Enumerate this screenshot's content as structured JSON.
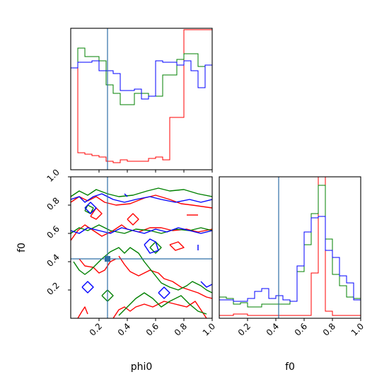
{
  "chart_data": {
    "type": "corner",
    "parameters": [
      "phi0",
      "f0"
    ],
    "xlabels": {
      "phi0": "phi0",
      "f0": "f0"
    },
    "ylabels": {
      "f0": "f0"
    },
    "range": {
      "phi0": [
        0.0,
        1.0
      ],
      "f0": [
        0.0,
        1.0
      ]
    },
    "ticks": {
      "phi0": [
        "0.2",
        "0.4",
        "0.6",
        "0.8",
        "1.0"
      ],
      "f0": [
        "0.2",
        "0.4",
        "0.6",
        "0.8",
        "1.0"
      ]
    },
    "truths": {
      "phi0": 0.26,
      "f0": 0.42,
      "color": "#2f6fa6"
    },
    "series": [
      {
        "color": "#ff0000"
      },
      {
        "color": "#008000"
      },
      {
        "color": "#0000ff"
      }
    ],
    "histograms": {
      "phi0": {
        "bin_edges": [
          0.0,
          0.05,
          0.1,
          0.15,
          0.2,
          0.25,
          0.3,
          0.35,
          0.4,
          0.45,
          0.5,
          0.55,
          0.6,
          0.65,
          0.7,
          0.75,
          0.8,
          0.85,
          0.9,
          0.95,
          1.0
        ],
        "ymax": 1.0,
        "values": [
          [
            0.72,
            0.12,
            0.11,
            0.1,
            0.09,
            0.06,
            0.05,
            0.07,
            0.06,
            0.06,
            0.06,
            0.08,
            0.09,
            0.07,
            0.37,
            0.37,
            0.99,
            0.99,
            0.99,
            0.99
          ],
          [
            0.72,
            0.86,
            0.8,
            0.8,
            0.77,
            0.6,
            0.54,
            0.46,
            0.46,
            0.54,
            0.54,
            0.52,
            0.52,
            0.67,
            0.67,
            0.78,
            0.82,
            0.82,
            0.73,
            0.74
          ],
          [
            0.72,
            0.76,
            0.76,
            0.77,
            0.7,
            0.7,
            0.68,
            0.56,
            0.56,
            0.57,
            0.5,
            0.52,
            0.77,
            0.76,
            0.76,
            0.74,
            0.77,
            0.7,
            0.58,
            0.74
          ]
        ]
      },
      "f0": {
        "bin_edges": [
          0.0,
          0.05,
          0.1,
          0.15,
          0.2,
          0.25,
          0.3,
          0.35,
          0.4,
          0.45,
          0.5,
          0.55,
          0.6,
          0.65,
          0.7,
          0.75,
          0.8,
          0.85,
          0.9,
          0.95,
          1.0
        ],
        "ymax": 1.0,
        "values": [
          [
            0.02,
            0.02,
            0.03,
            0.03,
            0.02,
            0.02,
            0.02,
            0.02,
            0.02,
            0.02,
            0.02,
            0.02,
            0.02,
            0.32,
            1.0,
            0.05,
            0.02,
            0.02,
            0.02,
            0.02
          ],
          [
            0.15,
            0.14,
            0.1,
            0.11,
            0.08,
            0.08,
            0.1,
            0.1,
            0.1,
            0.1,
            0.12,
            0.33,
            0.52,
            0.74,
            0.94,
            0.56,
            0.31,
            0.23,
            0.15,
            0.14
          ],
          [
            0.13,
            0.13,
            0.12,
            0.12,
            0.14,
            0.19,
            0.21,
            0.14,
            0.16,
            0.13,
            0.12,
            0.37,
            0.61,
            0.71,
            0.72,
            0.48,
            0.43,
            0.3,
            0.25,
            0.13
          ]
        ]
      }
    },
    "contours_2d": {
      "x": "phi0",
      "y": "f0",
      "levels": [
        [
          [
            [
              0.0,
              0.82
            ],
            [
              0.06,
              0.86
            ],
            [
              0.12,
              0.83
            ],
            [
              0.18,
              0.86
            ],
            [
              0.24,
              0.82
            ],
            [
              0.32,
              0.8
            ],
            [
              0.42,
              0.81
            ],
            [
              0.52,
              0.85
            ],
            [
              0.6,
              0.87
            ],
            [
              0.7,
              0.84
            ],
            [
              0.78,
              0.81
            ],
            [
              0.86,
              0.8
            ],
            [
              1.0,
              0.78
            ]
          ],
          [
            [
              0.0,
              0.55
            ],
            [
              0.05,
              0.62
            ],
            [
              0.1,
              0.66
            ],
            [
              0.16,
              0.62
            ],
            [
              0.22,
              0.58
            ],
            [
              0.3,
              0.62
            ],
            [
              0.36,
              0.66
            ],
            [
              0.4,
              0.63
            ],
            [
              0.48,
              0.61
            ],
            [
              0.56,
              0.64
            ],
            [
              0.64,
              0.64
            ],
            [
              0.72,
              0.62
            ],
            [
              0.82,
              0.63
            ],
            [
              0.9,
              0.61
            ],
            [
              1.0,
              0.63
            ]
          ],
          [
            [
              0.06,
              0.42
            ],
            [
              0.1,
              0.37
            ],
            [
              0.16,
              0.36
            ],
            [
              0.2,
              0.32
            ],
            [
              0.24,
              0.34
            ],
            [
              0.28,
              0.4
            ],
            [
              0.32,
              0.42
            ]
          ],
          [
            [
              0.34,
              0.44
            ],
            [
              0.38,
              0.38
            ],
            [
              0.42,
              0.33
            ],
            [
              0.48,
              0.3
            ],
            [
              0.56,
              0.34
            ],
            [
              0.62,
              0.32
            ],
            [
              0.66,
              0.28
            ],
            [
              0.72,
              0.26
            ],
            [
              0.78,
              0.22
            ],
            [
              0.84,
              0.2
            ],
            [
              0.9,
              0.18
            ],
            [
              0.96,
              0.15
            ],
            [
              1.0,
              0.14
            ]
          ],
          [
            [
              0.05,
              0.0
            ],
            [
              0.08,
              0.05
            ],
            [
              0.1,
              0.08
            ],
            [
              0.12,
              0.03
            ]
          ],
          [
            [
              0.3,
              0.0
            ],
            [
              0.34,
              0.06
            ],
            [
              0.38,
              0.08
            ],
            [
              0.42,
              0.05
            ],
            [
              0.46,
              0.08
            ],
            [
              0.52,
              0.1
            ],
            [
              0.58,
              0.08
            ],
            [
              0.66,
              0.12
            ],
            [
              0.74,
              0.1
            ],
            [
              0.82,
              0.08
            ],
            [
              0.88,
              0.12
            ],
            [
              0.92,
              0.06
            ],
            [
              0.96,
              0.0
            ]
          ],
          [
            [
              0.14,
              0.72
            ],
            [
              0.18,
              0.7
            ],
            [
              0.22,
              0.74
            ],
            [
              0.18,
              0.78
            ],
            [
              0.14,
              0.72
            ]
          ],
          [
            [
              0.4,
              0.7
            ],
            [
              0.44,
              0.66
            ],
            [
              0.48,
              0.7
            ],
            [
              0.44,
              0.74
            ],
            [
              0.4,
              0.7
            ]
          ],
          [
            [
              0.7,
              0.52
            ],
            [
              0.74,
              0.48
            ],
            [
              0.8,
              0.5
            ],
            [
              0.76,
              0.54
            ],
            [
              0.7,
              0.52
            ]
          ],
          [
            [
              0.82,
              0.73
            ],
            [
              0.9,
              0.73
            ]
          ]
        ],
        [
          [
            [
              0.0,
              0.86
            ],
            [
              0.06,
              0.9
            ],
            [
              0.12,
              0.87
            ],
            [
              0.18,
              0.91
            ],
            [
              0.26,
              0.88
            ],
            [
              0.34,
              0.86
            ],
            [
              0.44,
              0.87
            ],
            [
              0.54,
              0.9
            ],
            [
              0.62,
              0.92
            ],
            [
              0.7,
              0.9
            ],
            [
              0.8,
              0.91
            ],
            [
              0.9,
              0.88
            ],
            [
              1.0,
              0.86
            ]
          ],
          [
            [
              0.0,
              0.6
            ],
            [
              0.06,
              0.64
            ],
            [
              0.12,
              0.62
            ],
            [
              0.2,
              0.66
            ],
            [
              0.28,
              0.62
            ],
            [
              0.38,
              0.6
            ],
            [
              0.46,
              0.63
            ],
            [
              0.56,
              0.62
            ],
            [
              0.64,
              0.6
            ],
            [
              0.74,
              0.63
            ],
            [
              0.84,
              0.62
            ],
            [
              0.92,
              0.64
            ],
            [
              1.0,
              0.62
            ]
          ],
          [
            [
              0.02,
              0.4
            ],
            [
              0.06,
              0.34
            ],
            [
              0.1,
              0.31
            ],
            [
              0.14,
              0.34
            ],
            [
              0.18,
              0.38
            ],
            [
              0.22,
              0.42
            ],
            [
              0.28,
              0.47
            ],
            [
              0.34,
              0.5
            ],
            [
              0.38,
              0.46
            ],
            [
              0.42,
              0.5
            ],
            [
              0.48,
              0.46
            ],
            [
              0.52,
              0.4
            ],
            [
              0.56,
              0.35
            ],
            [
              0.6,
              0.3
            ],
            [
              0.64,
              0.25
            ],
            [
              0.7,
              0.22
            ],
            [
              0.76,
              0.2
            ],
            [
              0.82,
              0.23
            ],
            [
              0.86,
              0.26
            ],
            [
              0.92,
              0.23
            ],
            [
              0.96,
              0.2
            ],
            [
              1.0,
              0.18
            ]
          ],
          [
            [
              0.34,
              0.02
            ],
            [
              0.4,
              0.08
            ],
            [
              0.46,
              0.14
            ],
            [
              0.52,
              0.18
            ],
            [
              0.58,
              0.14
            ],
            [
              0.64,
              0.08
            ],
            [
              0.7,
              0.12
            ],
            [
              0.78,
              0.16
            ],
            [
              0.84,
              0.1
            ],
            [
              0.9,
              0.05
            ],
            [
              0.96,
              0.03
            ]
          ],
          [
            [
              0.22,
              0.16
            ],
            [
              0.26,
              0.12
            ],
            [
              0.3,
              0.16
            ],
            [
              0.26,
              0.2
            ],
            [
              0.22,
              0.16
            ]
          ],
          [
            [
              0.56,
              0.5
            ],
            [
              0.6,
              0.46
            ],
            [
              0.64,
              0.5
            ],
            [
              0.6,
              0.54
            ],
            [
              0.56,
              0.5
            ]
          ],
          [
            [
              0.1,
              0.76
            ],
            [
              0.14,
              0.74
            ],
            [
              0.16,
              0.78
            ],
            [
              0.12,
              0.8
            ],
            [
              0.1,
              0.76
            ]
          ]
        ],
        [
          [
            [
              0.0,
              0.84
            ],
            [
              0.06,
              0.86
            ],
            [
              0.1,
              0.82
            ],
            [
              0.16,
              0.86
            ],
            [
              0.22,
              0.88
            ],
            [
              0.3,
              0.84
            ],
            [
              0.38,
              0.82
            ],
            [
              0.46,
              0.84
            ],
            [
              0.56,
              0.86
            ],
            [
              0.64,
              0.84
            ],
            [
              0.74,
              0.82
            ],
            [
              0.84,
              0.84
            ],
            [
              0.92,
              0.82
            ],
            [
              1.0,
              0.84
            ]
          ],
          [
            [
              0.0,
              0.62
            ],
            [
              0.06,
              0.6
            ],
            [
              0.12,
              0.64
            ],
            [
              0.2,
              0.62
            ],
            [
              0.28,
              0.6
            ],
            [
              0.36,
              0.64
            ],
            [
              0.44,
              0.62
            ],
            [
              0.52,
              0.6
            ],
            [
              0.6,
              0.63
            ],
            [
              0.68,
              0.61
            ],
            [
              0.76,
              0.64
            ],
            [
              0.84,
              0.62
            ],
            [
              0.92,
              0.6
            ],
            [
              1.0,
              0.62
            ]
          ],
          [
            [
              0.1,
              0.78
            ],
            [
              0.14,
              0.74
            ],
            [
              0.18,
              0.78
            ],
            [
              0.14,
              0.82
            ],
            [
              0.1,
              0.78
            ]
          ],
          [
            [
              0.52,
              0.52
            ],
            [
              0.56,
              0.46
            ],
            [
              0.62,
              0.48
            ],
            [
              0.6,
              0.54
            ],
            [
              0.56,
              0.56
            ],
            [
              0.52,
              0.52
            ]
          ],
          [
            [
              0.08,
              0.22
            ],
            [
              0.12,
              0.18
            ],
            [
              0.16,
              0.22
            ],
            [
              0.12,
              0.26
            ],
            [
              0.08,
              0.22
            ]
          ],
          [
            [
              0.92,
              0.26
            ],
            [
              0.96,
              0.22
            ],
            [
              1.0,
              0.24
            ]
          ],
          [
            [
              0.62,
              0.18
            ],
            [
              0.66,
              0.14
            ],
            [
              0.7,
              0.18
            ],
            [
              0.66,
              0.22
            ],
            [
              0.62,
              0.18
            ]
          ],
          [
            [
              0.38,
              0.88
            ],
            [
              0.4,
              0.86
            ]
          ],
          [
            [
              0.9,
              0.52
            ],
            [
              0.9,
              0.48
            ]
          ]
        ]
      ]
    }
  }
}
